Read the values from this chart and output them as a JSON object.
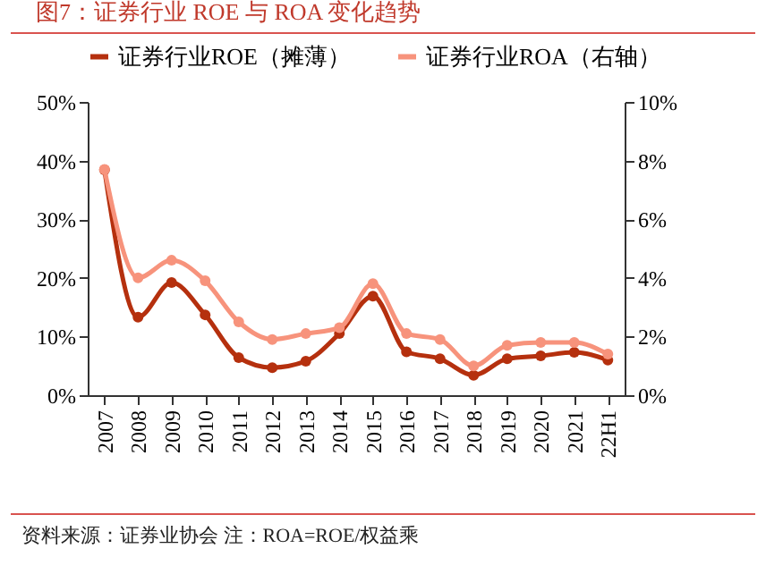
{
  "chart_data": {
    "type": "line",
    "title": "图7：证券行业 ROE 与 ROA 变化趋势",
    "categories": [
      "2007",
      "2008",
      "2009",
      "2010",
      "2011",
      "2012",
      "2013",
      "2014",
      "2015",
      "2016",
      "2017",
      "2018",
      "2019",
      "2020",
      "2021",
      "22H1"
    ],
    "series": [
      {
        "name": "证券行业ROE（摊薄）",
        "color": "#b5300e",
        "values": [
          38.4,
          13.3,
          19.2,
          13.7,
          6.4,
          4.7,
          5.8,
          10.5,
          16.9,
          7.4,
          6.2,
          3.4,
          6.2,
          6.7,
          7.3,
          6.0
        ]
      },
      {
        "name": "证券行业ROA（右轴）",
        "color": "#f7937c",
        "axis": "y2",
        "values": [
          7.7,
          4.0,
          4.6,
          3.9,
          2.5,
          1.9,
          2.1,
          2.3,
          3.8,
          2.1,
          1.9,
          1.0,
          1.7,
          1.8,
          1.8,
          1.4
        ]
      }
    ],
    "ylim": [
      0,
      50
    ],
    "yticks": [
      {
        "value": 0,
        "label": "0%"
      },
      {
        "value": 10,
        "label": "10%"
      },
      {
        "value": 20,
        "label": "20%"
      },
      {
        "value": 30,
        "label": "30%"
      },
      {
        "value": 40,
        "label": "40%"
      },
      {
        "value": 50,
        "label": "50%"
      }
    ],
    "y2lim": [
      0,
      10
    ],
    "y2ticks": [
      {
        "value": 0,
        "label": "0%"
      },
      {
        "value": 2,
        "label": "2%"
      },
      {
        "value": 4,
        "label": "4%"
      },
      {
        "value": 6,
        "label": "6%"
      },
      {
        "value": 8,
        "label": "8%"
      },
      {
        "value": 10,
        "label": "10%"
      }
    ],
    "legend": "top",
    "marker": "circle",
    "line_style": "solid",
    "grid": false,
    "annotations": [
      "资料来源：证券业协会 注：ROA=ROE/权益乘"
    ]
  }
}
